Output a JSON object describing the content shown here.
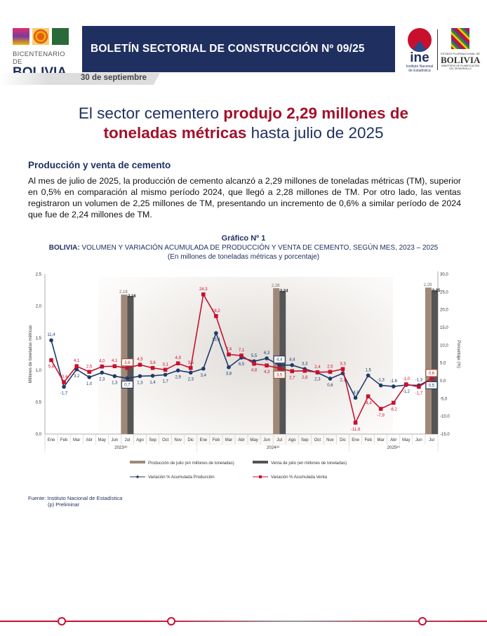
{
  "header": {
    "bicentenario_line1": "BICENTENARIO DE",
    "bicentenario_line2": "BOLIVIA",
    "title": "BOLETÍN SECTORIAL DE CONSTRUCCIÓN Nº 09/25",
    "date": "30 de septiembre",
    "ine_logo": "ine",
    "ine_sub1": "Instituto Nacional",
    "ine_sub2": "de Estadística",
    "gob_line1": "ESTADO PLURINACIONAL DE",
    "gob_line2": "BOLIVIA",
    "gob_line3": "MINISTERIO DE PLANIFICACIÓN DEL DESARROLLO"
  },
  "headline": {
    "pre": "El sector cementero ",
    "highlight": "produjo 2,29 millones de toneladas métricas",
    "post": " hasta julio de 2025"
  },
  "section_title": "Producción y venta de cemento",
  "paragraph": "Al mes de julio de 2025, la producción de cemento alcanzó a 2,29 millones de toneladas métricas (TM), superior en 0,5% en comparación al mismo período 2024, que llegó a 2,28 millones de TM. Por otro lado, las ventas registraron un volumen de 2,25 millones de TM, presentando un incremento de 0,6% a similar período de 2024 que fue de 2,24 millones de TM.",
  "chart_heading": {
    "label": "Gráfico Nº 1",
    "country": "BOLIVIA:",
    "subtitle": " VOLUMEN Y VARIACIÓN ACUMULADA DE PRODUCCIÓN Y VENTA DE CEMENTO, SEGÚN MES, 2023 – 2025",
    "units": "(En millones de toneladas métricas y porcentaje)"
  },
  "chart_data": {
    "type": "bar+line",
    "ylabel": "Millones de toneladas métricas",
    "y2label": "Porcentaje (%)",
    "ylim": [
      0,
      2.5
    ],
    "y2lim": [
      -15,
      30
    ],
    "yticks": [
      "0,0",
      "0,5",
      "1,0",
      "1,5",
      "2,0",
      "2,5"
    ],
    "y2ticks": [
      "-15,0",
      "-10,0",
      "-5,0",
      "0,0",
      "5,0",
      "10,0",
      "15,0",
      "20,0",
      "25,0",
      "30,0"
    ],
    "months": [
      "Ene",
      "Feb",
      "Mar",
      "Abr",
      "May",
      "Jun",
      "Jul",
      "Ago",
      "Sep",
      "Oct",
      "Nov",
      "Dic",
      "Ene",
      "Feb",
      "Mar",
      "Abr",
      "May",
      "Jun",
      "Jul",
      "Ago",
      "Sep",
      "Oct",
      "Nov",
      "Dic",
      "Ene",
      "Feb",
      "Mar",
      "Abr",
      "May",
      "Jun",
      "Jul"
    ],
    "years": [
      {
        "label": "2023",
        "sup": "(p)",
        "months": 12
      },
      {
        "label": "2024",
        "sup": "(p)",
        "months": 12
      },
      {
        "label": "2025",
        "sup": "(p)",
        "months": 7
      }
    ],
    "bars": {
      "july_index": [
        6,
        18,
        30
      ],
      "production": {
        "name": "Producción de julio (en millones de toneladas)",
        "values": [
          2.18,
          2.28,
          2.29
        ],
        "labels": [
          "2,18",
          "2,28",
          "2,29"
        ],
        "color": "#a08878"
      },
      "sales": {
        "name": "Venta de julio (en millones de toneladas)",
        "values": [
          2.16,
          2.24,
          2.25
        ],
        "labels": [
          "2,16",
          "2,24",
          "2,25"
        ],
        "color": "#555555"
      }
    },
    "series": [
      {
        "name": "Variación % Acumulada Producción",
        "color": "#1f3a6a",
        "marker": "circle",
        "values": [
          11.4,
          -1.7,
          3.2,
          1.0,
          2.3,
          1.3,
          0.7,
          1.3,
          1.4,
          1.7,
          2.9,
          2.3,
          3.4,
          13.4,
          3.8,
          6.5,
          5.5,
          6.3,
          4.4,
          4.4,
          3.3,
          2.3,
          0.6,
          2.1,
          -4.8,
          1.5,
          -1.3,
          -1.6,
          -1.2,
          -1.3,
          0.5
        ]
      },
      {
        "name": "Variación % Acumulada Venta",
        "color": "#c8102e",
        "marker": "square",
        "values": [
          5.8,
          -0.4,
          4.1,
          2.5,
          4.0,
          4.1,
          3.6,
          4.5,
          3.6,
          3.1,
          4.9,
          3.6,
          24.3,
          18.2,
          7.4,
          7.1,
          4.8,
          4.3,
          3.5,
          2.7,
          2.8,
          2.4,
          2.5,
          3.3,
          -11.8,
          -4.4,
          -7.9,
          -6.2,
          -1.0,
          -1.7,
          0.6
        ]
      }
    ],
    "legend": "bottom"
  },
  "source": {
    "line1": "Fuente: Instituto Nacional de Estadística",
    "line2": "(p) Preliminar"
  },
  "colors": {
    "navy": "#1f3060",
    "accent": "#a3102a"
  }
}
